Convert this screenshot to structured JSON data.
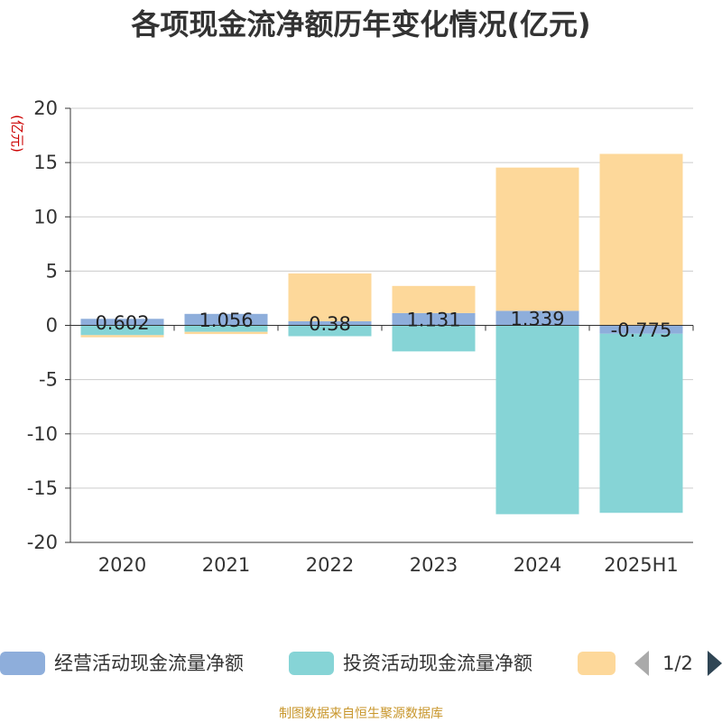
{
  "chart_data": {
    "type": "bar",
    "stacked": true,
    "title": "各项现金流净额历年变化情况(亿元)",
    "unit_label": "(亿元)",
    "categories": [
      "2020",
      "2021",
      "2022",
      "2023",
      "2024",
      "2025H1"
    ],
    "ylim": [
      -20,
      20
    ],
    "yticks": [
      20,
      15,
      10,
      5,
      0,
      -5,
      -10,
      -15,
      -20
    ],
    "grid": true,
    "legend_position": "bottom",
    "series": [
      {
        "name": "经营活动现金流量净额",
        "color": "#8eaedb",
        "values": [
          0.602,
          1.056,
          0.38,
          1.131,
          1.339,
          -0.775
        ],
        "labels": [
          "0.602",
          "1.056",
          "0.38",
          "1.131",
          "1.339",
          "-0.775"
        ]
      },
      {
        "name": "投资活动现金流量净额",
        "color": "#86d4d6",
        "values": [
          -0.9,
          -0.6,
          -1.0,
          -2.4,
          -17.4,
          -16.5
        ]
      },
      {
        "name": "",
        "color": "#fdd89a",
        "values": [
          -0.2,
          -0.2,
          4.4,
          2.5,
          13.2,
          15.8
        ]
      }
    ]
  },
  "legend": {
    "pager": "1/2"
  },
  "source": "制图数据来自恒生聚源数据库"
}
